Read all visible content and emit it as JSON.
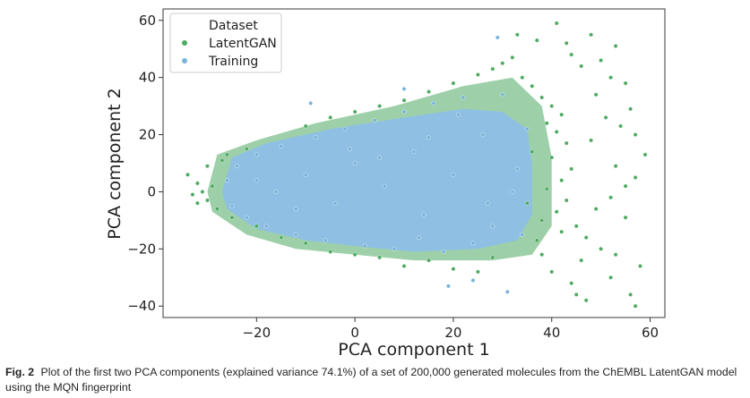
{
  "chart_data": {
    "type": "scatter",
    "xlabel": "PCA component 1",
    "ylabel": "PCA component 2",
    "xlim": [
      -39,
      63
    ],
    "ylim": [
      -44,
      64
    ],
    "xticks": [
      -20,
      0,
      20,
      40,
      60
    ],
    "yticks": [
      -40,
      -20,
      0,
      20,
      40,
      60
    ],
    "xtick_labels": [
      "−20",
      "0",
      "20",
      "40",
      "60"
    ],
    "ytick_labels": [
      "−40",
      "−20",
      "0",
      "20",
      "40",
      "60"
    ],
    "grid": false,
    "legend": {
      "title": "Dataset",
      "position": "top-left",
      "entries": [
        {
          "name": "LatentGAN",
          "color": "#4daa61"
        },
        {
          "name": "Training",
          "color": "#7ab3da"
        }
      ]
    },
    "series": [
      {
        "name": "LatentGAN",
        "color": "#4daa61",
        "points": [
          [
            41,
            59
          ],
          [
            33,
            55
          ],
          [
            48,
            55
          ],
          [
            37,
            53
          ],
          [
            43,
            52
          ],
          [
            53,
            51
          ],
          [
            44,
            48
          ],
          [
            50,
            46
          ],
          [
            46,
            44
          ],
          [
            52,
            40
          ],
          [
            55,
            38
          ],
          [
            49,
            34
          ],
          [
            56,
            29
          ],
          [
            51,
            26
          ],
          [
            54,
            23
          ],
          [
            57,
            20
          ],
          [
            48,
            18
          ],
          [
            59,
            13
          ],
          [
            53,
            9
          ],
          [
            57,
            5
          ],
          [
            55,
            2
          ],
          [
            52,
            -2
          ],
          [
            49,
            -6
          ],
          [
            55,
            -9
          ],
          [
            45,
            -12
          ],
          [
            47,
            -16
          ],
          [
            50,
            -20
          ],
          [
            46,
            -24
          ],
          [
            53,
            -22
          ],
          [
            58,
            -26
          ],
          [
            52,
            -30
          ],
          [
            44,
            -32
          ],
          [
            45,
            -36
          ],
          [
            56,
            -36
          ],
          [
            47,
            -38
          ],
          [
            57,
            -40
          ],
          [
            40,
            -28
          ],
          [
            38,
            -22
          ],
          [
            -34,
            6
          ],
          [
            -32,
            3
          ],
          [
            -31,
            0
          ],
          [
            -33,
            -1
          ],
          [
            -30,
            -3
          ],
          [
            -29,
            2
          ],
          [
            -32,
            -4
          ],
          [
            -30,
            9
          ],
          [
            -27,
            11
          ],
          [
            -28,
            -6
          ],
          [
            -26,
            13
          ],
          [
            -25,
            -9
          ],
          [
            -22,
            15
          ],
          [
            -20,
            -12
          ],
          [
            -15,
            -16
          ],
          [
            -10,
            -18
          ],
          [
            -5,
            -21
          ],
          [
            0,
            -22
          ],
          [
            5,
            -23
          ],
          [
            10,
            -26
          ],
          [
            15,
            -24
          ],
          [
            20,
            -27
          ],
          [
            25,
            -28
          ],
          [
            28,
            -23
          ],
          [
            -10,
            23
          ],
          [
            -5,
            26
          ],
          [
            0,
            28
          ],
          [
            5,
            30
          ],
          [
            10,
            32
          ],
          [
            15,
            35
          ],
          [
            20,
            38
          ],
          [
            25,
            41
          ],
          [
            28,
            43
          ],
          [
            30,
            45
          ],
          [
            32,
            47
          ],
          [
            34,
            40
          ],
          [
            36,
            37
          ],
          [
            38,
            33
          ],
          [
            40,
            30
          ],
          [
            42,
            27
          ],
          [
            39,
            24
          ],
          [
            41,
            21
          ],
          [
            43,
            17
          ],
          [
            40,
            12
          ],
          [
            44,
            8
          ],
          [
            42,
            4
          ],
          [
            39,
            1
          ],
          [
            43,
            -3
          ],
          [
            41,
            -7
          ],
          [
            38,
            -10
          ],
          [
            42,
            -14
          ],
          [
            37,
            -17
          ],
          [
            36,
            14
          ],
          [
            35,
            -4
          ]
        ]
      },
      {
        "name": "Training",
        "color": "#7ab3da",
        "points": [
          [
            -26,
            4
          ],
          [
            -25,
            -5
          ],
          [
            -24,
            9
          ],
          [
            -22,
            -9
          ],
          [
            -20,
            13
          ],
          [
            -18,
            -12
          ],
          [
            -16,
            0
          ],
          [
            -15,
            16
          ],
          [
            -12,
            -15
          ],
          [
            -10,
            6
          ],
          [
            -8,
            19
          ],
          [
            -6,
            -17
          ],
          [
            -4,
            -4
          ],
          [
            -2,
            22
          ],
          [
            0,
            10
          ],
          [
            2,
            -19
          ],
          [
            4,
            25
          ],
          [
            6,
            2
          ],
          [
            8,
            -20
          ],
          [
            10,
            28
          ],
          [
            12,
            14
          ],
          [
            14,
            -8
          ],
          [
            16,
            31
          ],
          [
            18,
            -21
          ],
          [
            20,
            6
          ],
          [
            22,
            33
          ],
          [
            24,
            -18
          ],
          [
            26,
            20
          ],
          [
            28,
            -12
          ],
          [
            30,
            34
          ],
          [
            32,
            0
          ],
          [
            34,
            -15
          ],
          [
            35,
            22
          ],
          [
            29,
            54
          ],
          [
            -9,
            31
          ],
          [
            19,
            -33
          ],
          [
            24,
            -31
          ],
          [
            31,
            -35
          ],
          [
            10,
            36
          ],
          [
            -20,
            4
          ],
          [
            15,
            19
          ],
          [
            27,
            -4
          ],
          [
            5,
            12
          ],
          [
            -12,
            -6
          ],
          [
            21,
            27
          ],
          [
            33,
            8
          ],
          [
            13,
            -16
          ],
          [
            -1,
            15
          ]
        ]
      }
    ],
    "regions": {
      "Training": [
        [
          -27,
          0
        ],
        [
          -25,
          12
        ],
        [
          -18,
          17
        ],
        [
          -5,
          22
        ],
        [
          10,
          26
        ],
        [
          22,
          29
        ],
        [
          30,
          28
        ],
        [
          35,
          22
        ],
        [
          36,
          10
        ],
        [
          36,
          -8
        ],
        [
          33,
          -17
        ],
        [
          25,
          -20
        ],
        [
          12,
          -21
        ],
        [
          0,
          -19
        ],
        [
          -10,
          -17
        ],
        [
          -20,
          -13
        ],
        [
          -26,
          -6
        ]
      ],
      "LatentGAN": [
        [
          -30,
          0
        ],
        [
          -28,
          13
        ],
        [
          -20,
          18
        ],
        [
          -8,
          24
        ],
        [
          8,
          30
        ],
        [
          22,
          37
        ],
        [
          32,
          40
        ],
        [
          38,
          30
        ],
        [
          40,
          12
        ],
        [
          40,
          -12
        ],
        [
          36,
          -22
        ],
        [
          28,
          -24
        ],
        [
          12,
          -24
        ],
        [
          0,
          -22
        ],
        [
          -12,
          -20
        ],
        [
          -22,
          -15
        ],
        [
          -29,
          -7
        ]
      ]
    }
  },
  "caption": {
    "label": "Fig. 2",
    "text": "Plot of the first two PCA components (explained variance 74.1%) of a set of 200,000 generated molecules from the ChEMBL LatentGAN model using the MQN fingerprint"
  }
}
